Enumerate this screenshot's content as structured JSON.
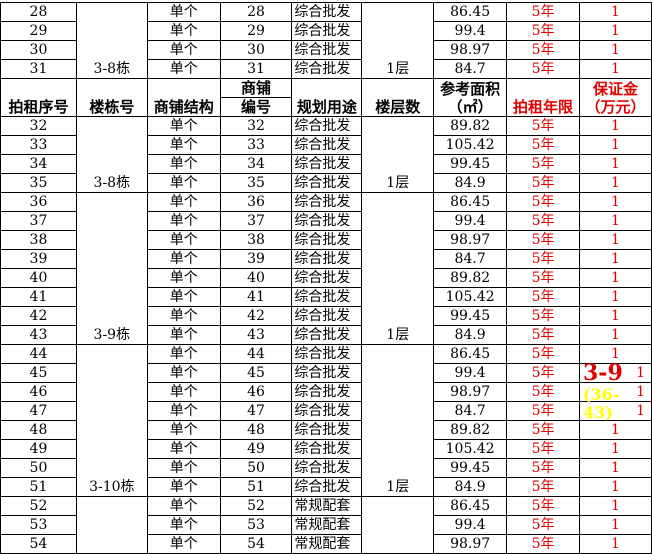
{
  "headers": {
    "seq": "拍租序号",
    "building": "楼栋号",
    "structure": "商铺结构",
    "shop_no_1": "商铺",
    "shop_no_2": "编号",
    "usage": "规划用途",
    "floor": "楼层数",
    "area_1": "参考面积",
    "area_2": "（㎡）",
    "term": "拍租年限",
    "deposit_1": "保证金",
    "deposit_2": "（万元）"
  },
  "top_rows": [
    {
      "seq": "28",
      "structure": "单个",
      "no": "28",
      "usage": "综合批发",
      "area": "86.45",
      "term": "5年",
      "deposit": "1"
    },
    {
      "seq": "29",
      "structure": "单个",
      "no": "29",
      "usage": "综合批发",
      "area": "99.4",
      "term": "5年",
      "deposit": "1"
    },
    {
      "seq": "30",
      "structure": "单个",
      "no": "30",
      "usage": "综合批发",
      "area": "98.97",
      "term": "5年",
      "deposit": "1"
    },
    {
      "seq": "31",
      "structure": "单个",
      "no": "31",
      "usage": "综合批发",
      "area": "84.7",
      "term": "5年",
      "deposit": "1"
    }
  ],
  "top_group": {
    "building": "3-8栋",
    "floor": "1层"
  },
  "groups": [
    {
      "building": "3-8栋",
      "floor": "1层",
      "rows": [
        {
          "seq": "32",
          "structure": "单个",
          "no": "32",
          "usage": "综合批发",
          "area": "89.82",
          "term": "5年",
          "deposit": "1"
        },
        {
          "seq": "33",
          "structure": "单个",
          "no": "33",
          "usage": "综合批发",
          "area": "105.42",
          "term": "5年",
          "deposit": "1"
        },
        {
          "seq": "34",
          "structure": "单个",
          "no": "34",
          "usage": "综合批发",
          "area": "99.45",
          "term": "5年",
          "deposit": "1"
        },
        {
          "seq": "35",
          "structure": "单个",
          "no": "35",
          "usage": "综合批发",
          "area": "84.9",
          "term": "5年",
          "deposit": "1"
        }
      ]
    },
    {
      "building": "3-9栋",
      "floor": "1层",
      "rows": [
        {
          "seq": "36",
          "structure": "单个",
          "no": "36",
          "usage": "综合批发",
          "area": "86.45",
          "term": "5年",
          "deposit": "1"
        },
        {
          "seq": "37",
          "structure": "单个",
          "no": "37",
          "usage": "综合批发",
          "area": "99.4",
          "term": "5年",
          "deposit": "1"
        },
        {
          "seq": "38",
          "structure": "单个",
          "no": "38",
          "usage": "综合批发",
          "area": "98.97",
          "term": "5年",
          "deposit": "1"
        },
        {
          "seq": "39",
          "structure": "单个",
          "no": "39",
          "usage": "综合批发",
          "area": "84.7",
          "term": "5年",
          "deposit": "1"
        },
        {
          "seq": "40",
          "structure": "单个",
          "no": "40",
          "usage": "综合批发",
          "area": "89.82",
          "term": "5年",
          "deposit": "1"
        },
        {
          "seq": "41",
          "structure": "单个",
          "no": "41",
          "usage": "综合批发",
          "area": "105.42",
          "term": "5年",
          "deposit": "1"
        },
        {
          "seq": "42",
          "structure": "单个",
          "no": "42",
          "usage": "综合批发",
          "area": "99.45",
          "term": "5年",
          "deposit": "1"
        },
        {
          "seq": "43",
          "structure": "单个",
          "no": "43",
          "usage": "综合批发",
          "area": "84.9",
          "term": "5年",
          "deposit": "1"
        }
      ]
    },
    {
      "building": "3-10栋",
      "floor": "1层",
      "rows": [
        {
          "seq": "44",
          "structure": "单个",
          "no": "44",
          "usage": "综合批发",
          "area": "86.45",
          "term": "5年",
          "deposit": "1"
        },
        {
          "seq": "45",
          "structure": "单个",
          "no": "45",
          "usage": "综合批发",
          "area": "99.4",
          "term": "5年",
          "deposit": "1"
        },
        {
          "seq": "46",
          "structure": "单个",
          "no": "46",
          "usage": "综合批发",
          "area": "98.97",
          "term": "5年",
          "deposit": "1"
        },
        {
          "seq": "47",
          "structure": "单个",
          "no": "47",
          "usage": "综合批发",
          "area": "84.7",
          "term": "5年",
          "deposit": "1"
        },
        {
          "seq": "48",
          "structure": "单个",
          "no": "48",
          "usage": "综合批发",
          "area": "89.82",
          "term": "5年",
          "deposit": "1"
        },
        {
          "seq": "49",
          "structure": "单个",
          "no": "49",
          "usage": "综合批发",
          "area": "105.42",
          "term": "5年",
          "deposit": "1"
        },
        {
          "seq": "50",
          "structure": "单个",
          "no": "50",
          "usage": "综合批发",
          "area": "99.45",
          "term": "5年",
          "deposit": "1"
        },
        {
          "seq": "51",
          "structure": "单个",
          "no": "51",
          "usage": "综合批发",
          "area": "84.9",
          "term": "5年",
          "deposit": "1"
        }
      ]
    },
    {
      "building": "",
      "floor": "",
      "rows": [
        {
          "seq": "52",
          "structure": "单个",
          "no": "52",
          "usage": "常规配套",
          "area": "86.45",
          "term": "5年",
          "deposit": "1"
        },
        {
          "seq": "53",
          "structure": "单个",
          "no": "53",
          "usage": "常规配套",
          "area": "99.4",
          "term": "5年",
          "deposit": "1"
        },
        {
          "seq": "54",
          "structure": "单个",
          "no": "54",
          "usage": "常规配套",
          "area": "98.97",
          "term": "5年",
          "deposit": "1"
        }
      ]
    }
  ],
  "overlay": {
    "title": "3-9",
    "range": "(36-43)",
    "title_color": "#e00000",
    "range_color": "#ffff00"
  }
}
